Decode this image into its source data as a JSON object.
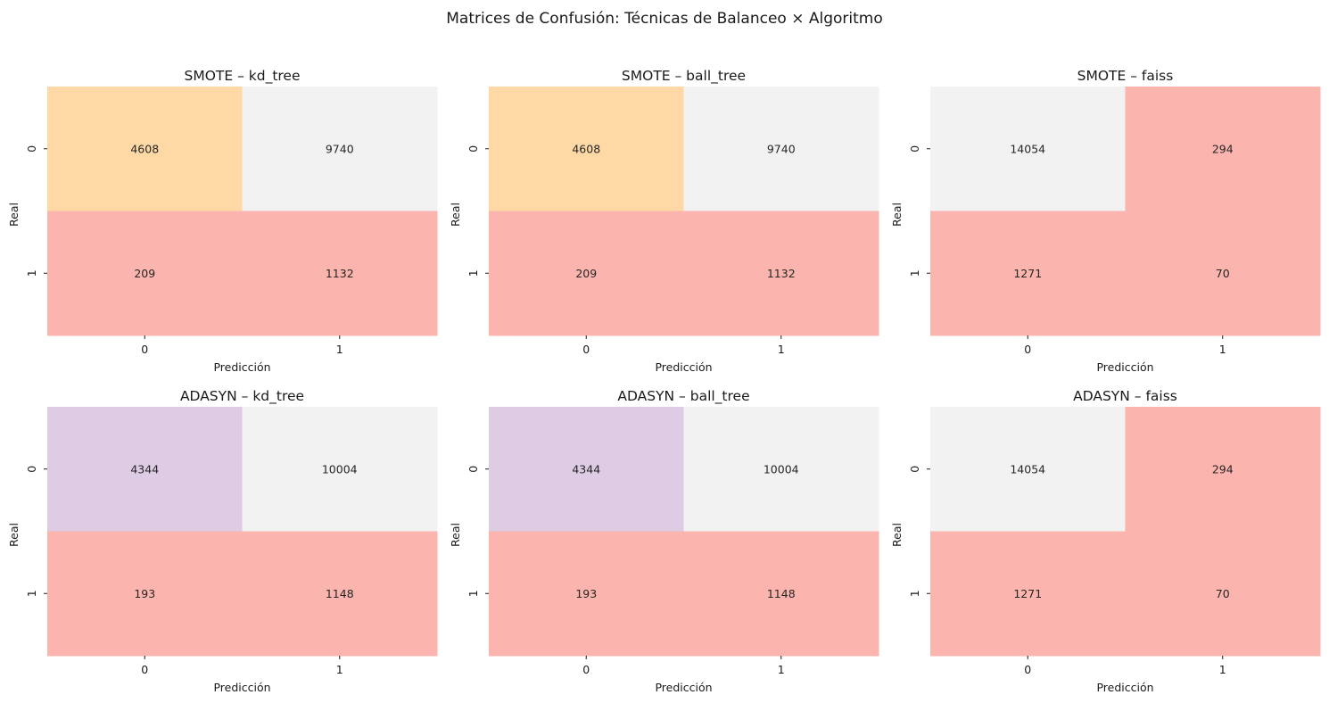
{
  "chart_data": {
    "type": "heatmap",
    "title": "Matrices de Confusión: Técnicas de Balanceo × Algoritmo",
    "xlabel": "Predicción",
    "ylabel": "Real",
    "x_ticks": [
      "0",
      "1"
    ],
    "y_ticks": [
      "0",
      "1"
    ],
    "colorbar": false,
    "colors": {
      "gray": "#f2f2f2",
      "red": "#fbb4ae",
      "orange": "#fed9a6",
      "purple": "#decbe4"
    },
    "panels": [
      {
        "title": "SMOTE – kd_tree",
        "matrix": [
          [
            4608,
            9740
          ],
          [
            209,
            1132
          ]
        ],
        "cell_colors": [
          [
            "orange",
            "gray"
          ],
          [
            "red",
            "red"
          ]
        ]
      },
      {
        "title": "SMOTE – ball_tree",
        "matrix": [
          [
            4608,
            9740
          ],
          [
            209,
            1132
          ]
        ],
        "cell_colors": [
          [
            "orange",
            "gray"
          ],
          [
            "red",
            "red"
          ]
        ]
      },
      {
        "title": "SMOTE – faiss",
        "matrix": [
          [
            14054,
            294
          ],
          [
            1271,
            70
          ]
        ],
        "cell_colors": [
          [
            "gray",
            "red"
          ],
          [
            "red",
            "red"
          ]
        ]
      },
      {
        "title": "ADASYN – kd_tree",
        "matrix": [
          [
            4344,
            10004
          ],
          [
            193,
            1148
          ]
        ],
        "cell_colors": [
          [
            "purple",
            "gray"
          ],
          [
            "red",
            "red"
          ]
        ]
      },
      {
        "title": "ADASYN – ball_tree",
        "matrix": [
          [
            4344,
            10004
          ],
          [
            193,
            1148
          ]
        ],
        "cell_colors": [
          [
            "purple",
            "gray"
          ],
          [
            "red",
            "red"
          ]
        ]
      },
      {
        "title": "ADASYN – faiss",
        "matrix": [
          [
            14054,
            294
          ],
          [
            1271,
            70
          ]
        ],
        "cell_colors": [
          [
            "gray",
            "red"
          ],
          [
            "red",
            "red"
          ]
        ]
      }
    ]
  }
}
